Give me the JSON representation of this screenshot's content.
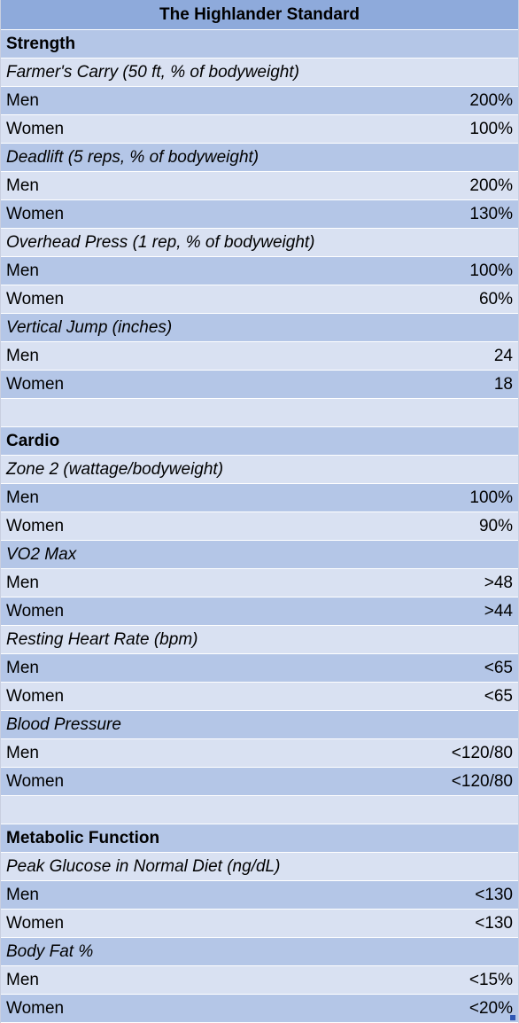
{
  "colors": {
    "title_bg": "#8eaadb",
    "dark_band": "#b4c6e7",
    "light_band": "#d9e1f2"
  },
  "rows": [
    {
      "kind": "title",
      "label": "The Highlander Standard",
      "value": "",
      "shade": "title"
    },
    {
      "kind": "section",
      "label": "Strength",
      "value": "",
      "shade": "dark"
    },
    {
      "kind": "subhead",
      "label": "Farmer's Carry (50 ft, % of bodyweight)",
      "value": "",
      "shade": "light"
    },
    {
      "kind": "data",
      "label": "Men",
      "value": "200%",
      "shade": "dark"
    },
    {
      "kind": "data",
      "label": "Women",
      "value": "100%",
      "shade": "light"
    },
    {
      "kind": "subhead",
      "label": "Deadlift (5 reps, % of bodyweight)",
      "value": "",
      "shade": "dark"
    },
    {
      "kind": "data",
      "label": "Men",
      "value": "200%",
      "shade": "light"
    },
    {
      "kind": "data",
      "label": "Women",
      "value": "130%",
      "shade": "dark"
    },
    {
      "kind": "subhead",
      "label": "Overhead Press (1 rep, % of bodyweight)",
      "value": "",
      "shade": "light"
    },
    {
      "kind": "data",
      "label": "Men",
      "value": "100%",
      "shade": "dark"
    },
    {
      "kind": "data",
      "label": "Women",
      "value": "60%",
      "shade": "light"
    },
    {
      "kind": "subhead",
      "label": "Vertical Jump (inches)",
      "value": "",
      "shade": "dark"
    },
    {
      "kind": "data",
      "label": "Men",
      "value": "24",
      "shade": "light"
    },
    {
      "kind": "data",
      "label": "Women",
      "value": "18",
      "shade": "dark"
    },
    {
      "kind": "blank",
      "label": "",
      "value": "",
      "shade": "light"
    },
    {
      "kind": "section",
      "label": "Cardio",
      "value": "",
      "shade": "dark"
    },
    {
      "kind": "subhead",
      "label": "Zone 2 (wattage/bodyweight)",
      "value": "",
      "shade": "light"
    },
    {
      "kind": "data",
      "label": "Men",
      "value": "100%",
      "shade": "dark"
    },
    {
      "kind": "data",
      "label": "Women",
      "value": "90%",
      "shade": "light"
    },
    {
      "kind": "subhead",
      "label": "VO2 Max",
      "value": "",
      "shade": "dark"
    },
    {
      "kind": "data",
      "label": "Men",
      "value": ">48",
      "shade": "light"
    },
    {
      "kind": "data",
      "label": "Women",
      "value": ">44",
      "shade": "dark"
    },
    {
      "kind": "subhead",
      "label": "Resting Heart Rate (bpm)",
      "value": "",
      "shade": "light"
    },
    {
      "kind": "data",
      "label": "Men",
      "value": "<65",
      "shade": "dark"
    },
    {
      "kind": "data",
      "label": "Women",
      "value": "<65",
      "shade": "light"
    },
    {
      "kind": "subhead",
      "label": "Blood Pressure",
      "value": "",
      "shade": "dark"
    },
    {
      "kind": "data",
      "label": "Men",
      "value": "<120/80",
      "shade": "light"
    },
    {
      "kind": "data",
      "label": "Women",
      "value": "<120/80",
      "shade": "dark"
    },
    {
      "kind": "blank",
      "label": "",
      "value": "",
      "shade": "light"
    },
    {
      "kind": "section",
      "label": "Metabolic Function",
      "value": "",
      "shade": "dark"
    },
    {
      "kind": "subhead",
      "label": "Peak Glucose in Normal Diet (ng/dL)",
      "value": "",
      "shade": "light"
    },
    {
      "kind": "data",
      "label": "Men",
      "value": "<130",
      "shade": "dark"
    },
    {
      "kind": "data",
      "label": "Women",
      "value": "<130",
      "shade": "light"
    },
    {
      "kind": "subhead",
      "label": "Body Fat %",
      "value": "",
      "shade": "dark"
    },
    {
      "kind": "data",
      "label": "Men",
      "value": "<15%",
      "shade": "light"
    },
    {
      "kind": "data",
      "label": "Women",
      "value": "<20%",
      "shade": "dark"
    }
  ]
}
